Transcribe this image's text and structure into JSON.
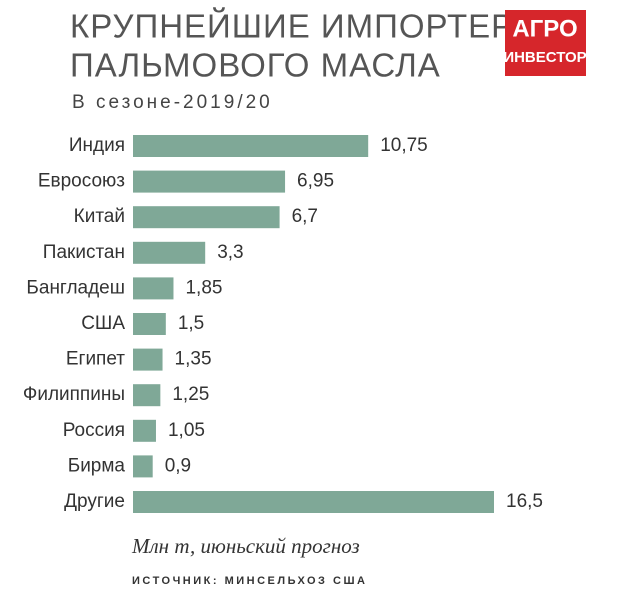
{
  "chart_data": {
    "type": "bar",
    "orientation": "horizontal",
    "title": [
      "КРУПНЕЙШИЕ ИМПОРТЕРЫ",
      "ПАЛЬМОВОГО МАСЛА"
    ],
    "subtitle": "В сезоне-2019/20",
    "logo": [
      "АГРО",
      "ИНВЕСТОР"
    ],
    "categories": [
      "Индия",
      "Евросоюз",
      "Китай",
      "Пакистан",
      "Бангладеш",
      "США",
      "Египет",
      "Филиппины",
      "Россия",
      "Бирма",
      "Другие"
    ],
    "values": [
      10.75,
      6.95,
      6.7,
      3.3,
      1.85,
      1.5,
      1.35,
      1.25,
      1.05,
      0.9,
      16.5
    ],
    "value_labels": [
      "10,75",
      "6,95",
      "6,7",
      "3,3",
      "1,85",
      "1,5",
      "1,35",
      "1,25",
      "1,05",
      "0,9",
      "16,5"
    ],
    "color": "#7fa897",
    "note": "Млн т, июньский прогноз",
    "source": "ИСТОЧНИК: МИНСЕЛЬХОЗ США"
  }
}
